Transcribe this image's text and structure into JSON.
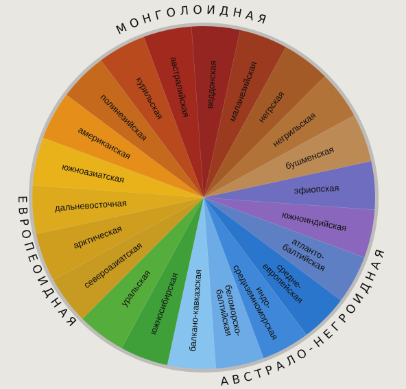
{
  "diagram": {
    "groups": [
      {
        "name": "МОНГОЛОИДНАЯ",
        "color": "#d6a21a"
      },
      {
        "name": "АВСТРАЛО-НЕГРОИДНАЯ",
        "color": "#a4401c"
      },
      {
        "name": "ЕВРОПЕОИДНАЯ",
        "color": "#3c8ed3"
      }
    ],
    "segments": [
      {
        "label": [
          "североазиатская"
        ],
        "color": "#c79a22",
        "group": "МОНГОЛОИДНАЯ"
      },
      {
        "label": [
          "арктическая"
        ],
        "color": "#cf9e1f",
        "group": "МОНГОЛОИДНАЯ"
      },
      {
        "label": [
          "дальневосточная"
        ],
        "color": "#dcaa1c",
        "group": "МОНГОЛОИДНАЯ"
      },
      {
        "label": [
          "южноазиатская"
        ],
        "color": "#e9b11a",
        "group": "МОНГОЛОИДНАЯ"
      },
      {
        "label": [
          "американская"
        ],
        "color": "#e58e1a",
        "group": "МОНГОЛОИДНАЯ"
      },
      {
        "label": [
          "полинезийская"
        ],
        "color": "#c56a1c",
        "group": "АВСТРАЛО-НЕГРОИДНАЯ"
      },
      {
        "label": [
          "курильская"
        ],
        "color": "#b84a1d",
        "group": "АВСТРАЛО-НЕГРОИДНАЯ"
      },
      {
        "label": [
          "австралийская"
        ],
        "color": "#a1291d",
        "group": "АВСТРАЛО-НЕГРОИДНАЯ"
      },
      {
        "label": [
          "веддонская"
        ],
        "color": "#942520",
        "group": "АВСТРАЛО-НЕГРОИДНАЯ"
      },
      {
        "label": [
          "маланезийская"
        ],
        "color": "#9b3a1e",
        "group": "АВСТРАЛО-НЕГРОИДНАЯ"
      },
      {
        "label": [
          "негрская"
        ],
        "color": "#a45a26",
        "group": "АВСТРАЛО-НЕГРОИДНАЯ"
      },
      {
        "label": [
          "негрильская"
        ],
        "color": "#b27339",
        "group": "АВСТРАЛО-НЕГРОИДНАЯ"
      },
      {
        "label": [
          "бушменская"
        ],
        "color": "#bb8a55",
        "group": "АВСТРАЛО-НЕГРОИДНАЯ"
      },
      {
        "label": [
          "эфиопская"
        ],
        "color": "#6e6dc0",
        "group": "ЕВРОПЕОИДНАЯ"
      },
      {
        "label": [
          "южноиндийская"
        ],
        "color": "#8a67bd",
        "group": "ЕВРОПЕОИДНАЯ"
      },
      {
        "label": [
          "атланто-",
          "балтийская"
        ],
        "color": "#5f7fc4",
        "group": "ЕВРОПЕОИДНАЯ"
      },
      {
        "label": [
          "средне-",
          "европейская"
        ],
        "color": "#2b76cd",
        "group": "ЕВРОПЕОИДНАЯ"
      },
      {
        "label": [
          "индо-",
          "средиземноморская"
        ],
        "color": "#3f88d9",
        "group": "ЕВРОПЕОИДНАЯ"
      },
      {
        "label": [
          "беломорско-",
          "балтийская"
        ],
        "color": "#6cabe6",
        "group": "ЕВРОПЕОИДНАЯ"
      },
      {
        "label": [
          "балкано-кавказская"
        ],
        "color": "#86c3ee",
        "group": "ЕВРОПЕОИДНАЯ"
      },
      {
        "label": [
          "южносибирская"
        ],
        "color": "#3f9f39",
        "group": "МОНГОЛОИДНАЯ"
      },
      {
        "label": [
          "уральская"
        ],
        "color": "#55ae3b",
        "group": "МОНГОЛОИДНАЯ"
      }
    ]
  }
}
